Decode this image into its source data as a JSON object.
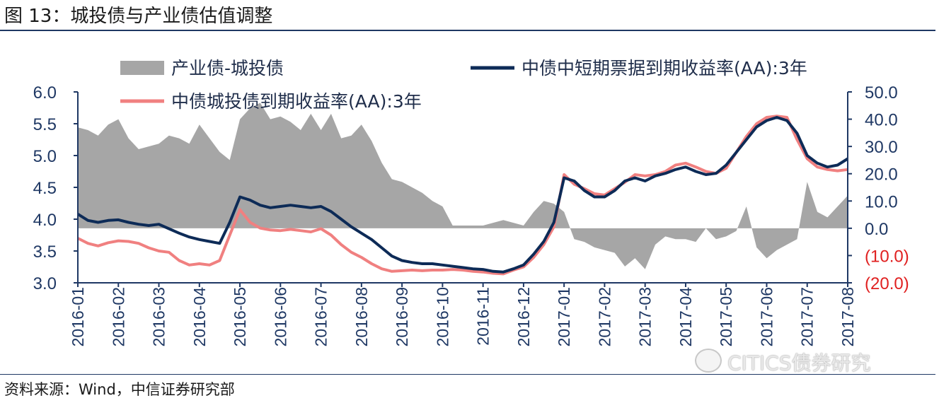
{
  "figure": {
    "title": "图 13：城投债与产业债估值调整",
    "source": "资料来源：Wind，中信证券研究部",
    "watermark": "CITICS债券研究",
    "watermark_icon": "wechat-icon"
  },
  "colors": {
    "area": "#a6a6a6",
    "navy": "#0d2b57",
    "pink": "#f08080",
    "axis": "#1f3864",
    "right_axis_text": "#1f3864",
    "negative_text": "#e02020"
  },
  "chart_data": {
    "type": "line",
    "legend": [
      {
        "label": "产业债-城投债",
        "kind": "area"
      },
      {
        "label": "中债中短期票据到期收益率(AA):3年",
        "kind": "line-navy"
      },
      {
        "label": "中债城投债到期收益率(AA):3年",
        "kind": "line-pink"
      }
    ],
    "legend_placement": "top",
    "x_tick_labels": [
      "2016-01",
      "2016-02",
      "2016-03",
      "2016-04",
      "2016-05",
      "2016-06",
      "2016-07",
      "2016-08",
      "2016-09",
      "2016-10",
      "2016-11",
      "2016-12",
      "2017-01",
      "2017-02",
      "2017-03",
      "2017-04",
      "2017-05",
      "2017-06",
      "2017-07",
      "2017-08"
    ],
    "y_left": {
      "min": 3.0,
      "max": 6.0,
      "tick_labels": [
        "3.0",
        "3.5",
        "4.0",
        "4.5",
        "5.0",
        "5.5",
        "6.0"
      ]
    },
    "y_right": {
      "min": -20,
      "max": 50,
      "tick_labels": [
        "(20.0)",
        "(10.0)",
        "0.0",
        "10.0",
        "20.0",
        "30.0",
        "40.0",
        "50.0"
      ]
    },
    "grid": false,
    "x": [
      0,
      0.25,
      0.5,
      0.75,
      1,
      1.25,
      1.5,
      1.75,
      2,
      2.25,
      2.5,
      2.75,
      3,
      3.25,
      3.5,
      3.75,
      4,
      4.25,
      4.5,
      4.75,
      5,
      5.25,
      5.5,
      5.75,
      6,
      6.25,
      6.5,
      6.75,
      7,
      7.25,
      7.5,
      7.75,
      8,
      8.25,
      8.5,
      8.75,
      9,
      9.25,
      9.5,
      9.75,
      10,
      10.25,
      10.5,
      10.75,
      11,
      11.25,
      11.5,
      11.75,
      12,
      12.25,
      12.5,
      12.75,
      13,
      13.25,
      13.5,
      13.75,
      14,
      14.25,
      14.5,
      14.75,
      15,
      15.25,
      15.5,
      15.75,
      16,
      16.25,
      16.5,
      16.75,
      17,
      17.25,
      17.5,
      17.75,
      18,
      18.25,
      18.5,
      18.75,
      19
    ],
    "series": [
      {
        "name": "中债中短期票据到期收益率(AA):3年",
        "axis": "left",
        "values": [
          4.08,
          3.98,
          3.95,
          3.98,
          3.99,
          3.95,
          3.92,
          3.9,
          3.92,
          3.85,
          3.78,
          3.72,
          3.68,
          3.65,
          3.62,
          3.95,
          4.35,
          4.3,
          4.22,
          4.18,
          4.2,
          4.22,
          4.2,
          4.18,
          4.2,
          4.12,
          4.0,
          3.88,
          3.78,
          3.68,
          3.55,
          3.42,
          3.35,
          3.32,
          3.3,
          3.3,
          3.28,
          3.26,
          3.24,
          3.22,
          3.21,
          3.18,
          3.17,
          3.22,
          3.28,
          3.45,
          3.65,
          3.95,
          4.65,
          4.6,
          4.45,
          4.35,
          4.35,
          4.45,
          4.6,
          4.65,
          4.6,
          4.68,
          4.72,
          4.78,
          4.82,
          4.75,
          4.7,
          4.72,
          4.85,
          5.05,
          5.25,
          5.45,
          5.55,
          5.6,
          5.55,
          5.35,
          5.0,
          4.88,
          4.82,
          4.85,
          4.95
        ]
      },
      {
        "name": "中债城投债到期收益率(AA):3年",
        "axis": "left",
        "values": [
          3.7,
          3.62,
          3.58,
          3.63,
          3.66,
          3.65,
          3.62,
          3.55,
          3.5,
          3.48,
          3.35,
          3.28,
          3.3,
          3.28,
          3.35,
          3.75,
          4.15,
          3.95,
          3.86,
          3.83,
          3.82,
          3.84,
          3.82,
          3.8,
          3.85,
          3.75,
          3.6,
          3.48,
          3.4,
          3.3,
          3.22,
          3.18,
          3.19,
          3.2,
          3.19,
          3.2,
          3.2,
          3.21,
          3.2,
          3.18,
          3.17,
          3.15,
          3.14,
          3.2,
          3.25,
          3.4,
          3.6,
          3.88,
          4.7,
          4.55,
          4.48,
          4.4,
          4.38,
          4.48,
          4.58,
          4.7,
          4.68,
          4.7,
          4.75,
          4.85,
          4.88,
          4.82,
          4.75,
          4.72,
          4.8,
          5.05,
          5.3,
          5.5,
          5.6,
          5.62,
          5.6,
          5.25,
          4.95,
          4.82,
          4.78,
          4.76,
          4.78
        ]
      },
      {
        "name": "产业债-城投债",
        "axis": "right",
        "type": "area",
        "values": [
          37,
          36,
          34,
          38,
          40,
          33,
          29,
          30,
          31,
          34,
          33,
          31,
          38,
          33,
          28,
          25,
          40,
          44,
          46,
          40,
          41,
          39,
          36,
          42,
          36,
          42,
          33,
          34,
          38,
          32,
          24,
          18,
          17,
          15,
          13,
          10,
          8,
          1,
          1,
          1,
          1,
          2,
          3,
          2,
          1,
          6,
          10,
          9,
          6,
          -4,
          -5,
          -7,
          -8,
          -9,
          -14,
          -11,
          -15,
          -6,
          -3,
          -4,
          -4,
          -5,
          0,
          -4,
          -3,
          -1,
          8,
          -7,
          -11,
          -8,
          -6,
          -4,
          17,
          6,
          4,
          8,
          12
        ]
      }
    ]
  }
}
